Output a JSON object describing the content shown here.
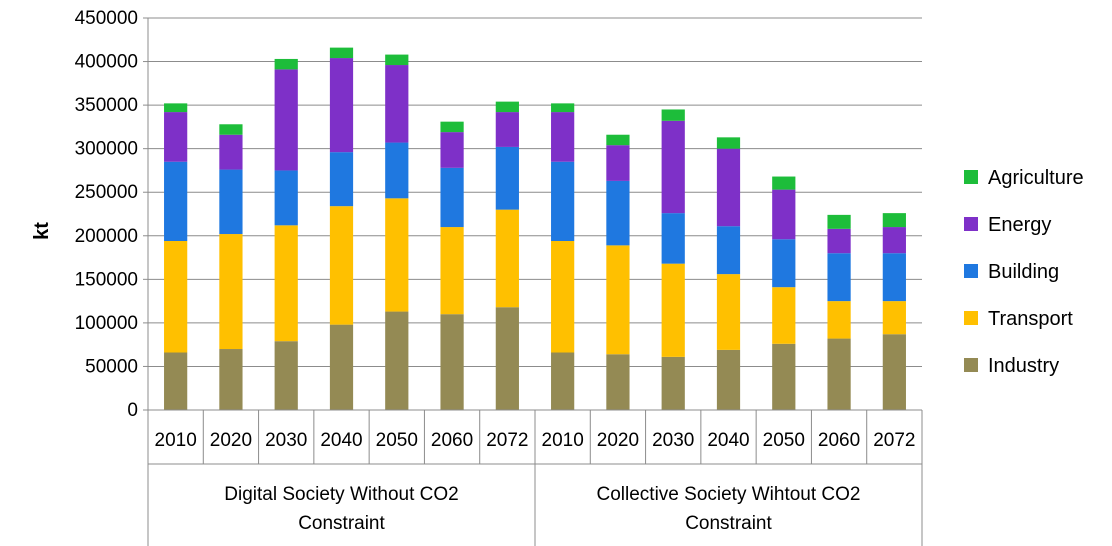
{
  "chart_data": {
    "type": "bar",
    "stacked": true,
    "ylabel": "kt",
    "xlabel": "",
    "ylim": [
      0,
      450000
    ],
    "yticks": [
      0,
      50000,
      100000,
      150000,
      200000,
      250000,
      300000,
      350000,
      400000,
      450000
    ],
    "grid": true,
    "legend_position": "right",
    "categories": [
      "2010",
      "2020",
      "2030",
      "2040",
      "2050",
      "2060",
      "2072",
      "2010",
      "2020",
      "2030",
      "2040",
      "2050",
      "2060",
      "2072"
    ],
    "groups": [
      {
        "label": "Digital Society Without CO2 Constraint",
        "span": 7
      },
      {
        "label": "Collective Society Wihtout CO2 Constraint",
        "span": 7
      }
    ],
    "series": [
      {
        "name": "Industry",
        "color": "#948A54",
        "values": [
          66000,
          70000,
          79000,
          98000,
          113000,
          110000,
          118000,
          66000,
          64000,
          61000,
          69000,
          76000,
          82000,
          87000
        ]
      },
      {
        "name": "Transport",
        "color": "#FFC000",
        "values": [
          128000,
          132000,
          133000,
          136000,
          130000,
          100000,
          112000,
          128000,
          125000,
          107000,
          87000,
          65000,
          43000,
          38000
        ]
      },
      {
        "name": "Building",
        "color": "#1F78E0",
        "values": [
          91000,
          74000,
          63000,
          62000,
          64000,
          68000,
          72000,
          91000,
          74000,
          58000,
          55000,
          55000,
          55000,
          55000
        ]
      },
      {
        "name": "Energy",
        "color": "#7E30C8",
        "values": [
          57000,
          40000,
          116000,
          108000,
          89000,
          41000,
          40000,
          57000,
          41000,
          106000,
          89000,
          57000,
          28000,
          30000
        ]
      },
      {
        "name": "Agriculture",
        "color": "#1DBD3A",
        "values": [
          10000,
          12000,
          12000,
          12000,
          12000,
          12000,
          12000,
          10000,
          12000,
          13000,
          13000,
          15000,
          16000,
          16000
        ]
      }
    ],
    "legend_order": [
      "Agriculture",
      "Energy",
      "Building",
      "Transport",
      "Industry"
    ]
  }
}
